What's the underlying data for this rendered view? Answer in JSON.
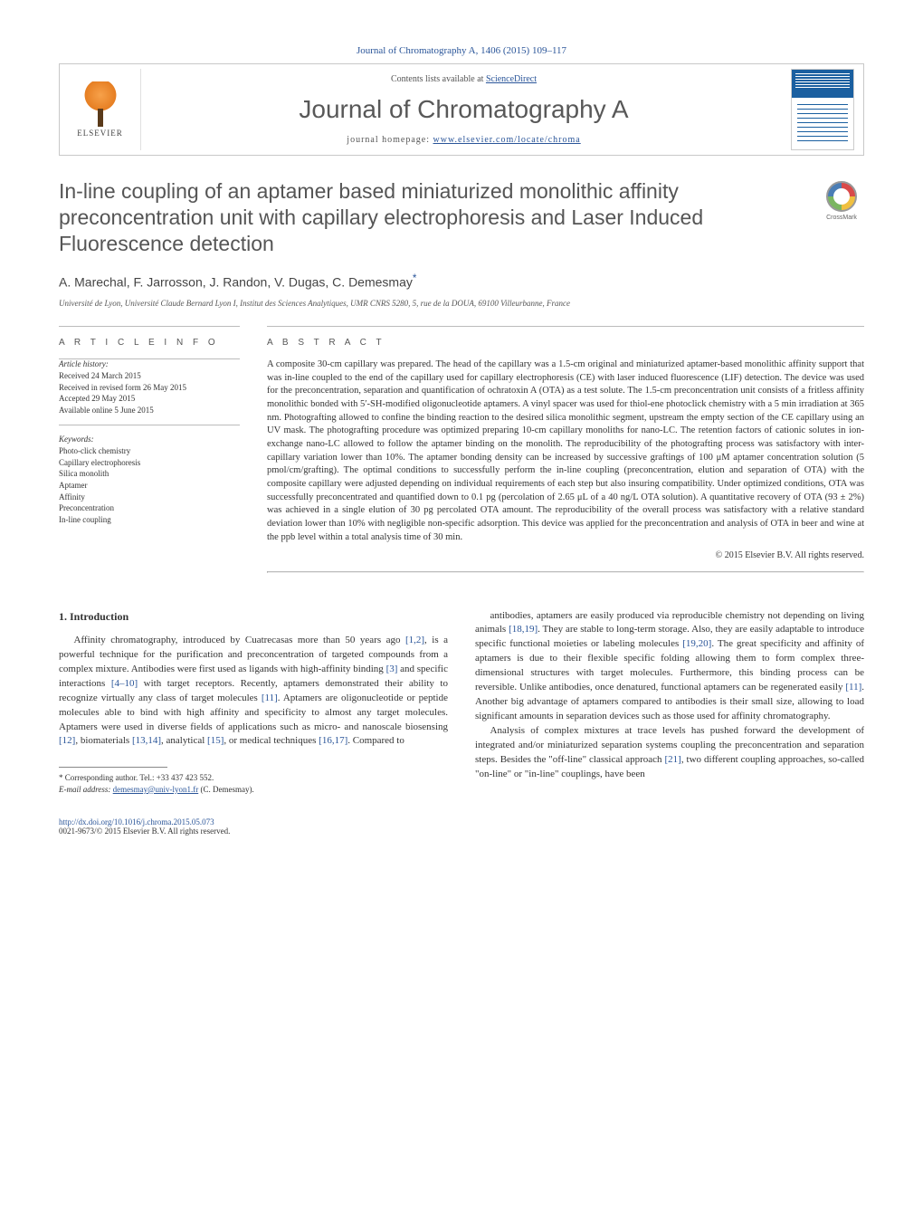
{
  "journal_ref": "Journal of Chromatography A, 1406 (2015) 109–117",
  "header": {
    "publisher": "ELSEVIER",
    "contents_prefix": "Contents lists available at ",
    "contents_link": "ScienceDirect",
    "journal_title": "Journal of Chromatography A",
    "homepage_prefix": "journal homepage: ",
    "homepage_link": "www.elsevier.com/locate/chroma"
  },
  "crossmark_label": "CrossMark",
  "article": {
    "title": "In-line coupling of an aptamer based miniaturized monolithic affinity preconcentration unit with capillary electrophoresis and Laser Induced Fluorescence detection",
    "authors": "A. Marechal, F. Jarrosson, J. Randon, V. Dugas, C. Demesmay",
    "corr_marker": "*",
    "affiliation": "Université de Lyon, Université Claude Bernard Lyon I, Institut des Sciences Analytiques, UMR CNRS 5280, 5, rue de la DOUA, 69100 Villeurbanne, France"
  },
  "info": {
    "label": "A R T I C L E    I N F O",
    "history_heading": "Article history:",
    "history": "Received 24 March 2015\nReceived in revised form 26 May 2015\nAccepted 29 May 2015\nAvailable online 5 June 2015",
    "keywords_heading": "Keywords:",
    "keywords": "Photo-click chemistry\nCapillary electrophoresis\nSilica monolith\nAptamer\nAffinity\nPreconcentration\nIn-line coupling"
  },
  "abstract": {
    "label": "A B S T R A C T",
    "text": "A composite 30-cm capillary was prepared. The head of the capillary was a 1.5-cm original and miniaturized aptamer-based monolithic affinity support that was in-line coupled to the end of the capillary used for capillary electrophoresis (CE) with laser induced fluorescence (LIF) detection. The device was used for the preconcentration, separation and quantification of ochratoxin A (OTA) as a test solute. The 1.5-cm preconcentration unit consists of a fritless affinity monolithic bonded with 5′-SH-modified oligonucleotide aptamers. A vinyl spacer was used for thiol-ene photoclick chemistry with a 5 min irradiation at 365 nm. Photografting allowed to confine the binding reaction to the desired silica monolithic segment, upstream the empty section of the CE capillary using an UV mask. The photografting procedure was optimized preparing 10-cm capillary monoliths for nano-LC. The retention factors of cationic solutes in ion-exchange nano-LC allowed to follow the aptamer binding on the monolith. The reproducibility of the photografting process was satisfactory with inter-capillary variation lower than 10%. The aptamer bonding density can be increased by successive graftings of 100 μM aptamer concentration solution (5 pmol/cm/grafting). The optimal conditions to successfully perform the in-line coupling (preconcentration, elution and separation of OTA) with the composite capillary were adjusted depending on individual requirements of each step but also insuring compatibility. Under optimized conditions, OTA was successfully preconcentrated and quantified down to 0.1 pg (percolation of 2.65 μL of a 40 ng/L OTA solution). A quantitative recovery of OTA (93 ± 2%) was achieved in a single elution of 30 pg percolated OTA amount. The reproducibility of the overall process was satisfactory with a relative standard deviation lower than 10% with negligible non-specific adsorption. This device was applied for the preconcentration and analysis of OTA in beer and wine at the ppb level within a total analysis time of 30 min.",
    "copyright": "© 2015 Elsevier B.V. All rights reserved."
  },
  "body": {
    "intro_heading": "1. Introduction",
    "left_para": "Affinity chromatography, introduced by Cuatrecasas more than 50 years ago [1,2], is a powerful technique for the purification and preconcentration of targeted compounds from a complex mixture. Antibodies were first used as ligands with high-affinity binding [3] and specific interactions [4–10] with target receptors. Recently, aptamers demonstrated their ability to recognize virtually any class of target molecules [11]. Aptamers are oligonucleotide or peptide molecules able to bind with high affinity and specificity to almost any target molecules. Aptamers were used in diverse fields of applications such as micro- and nanoscale biosensing [12], biomaterials [13,14], analytical [15], or medical techniques [16,17]. Compared to",
    "right_para1": "antibodies, aptamers are easily produced via reproducible chemistry not depending on living animals [18,19]. They are stable to long-term storage. Also, they are easily adaptable to introduce specific functional moieties or labeling molecules [19,20]. The great specificity and affinity of aptamers is due to their flexible specific folding allowing them to form complex three-dimensional structures with target molecules. Furthermore, this binding process can be reversible. Unlike antibodies, once denatured, functional aptamers can be regenerated easily [11]. Another big advantage of aptamers compared to antibodies is their small size, allowing to load significant amounts in separation devices such as those used for affinity chromatography.",
    "right_para2": "Analysis of complex mixtures at trace levels has pushed forward the development of integrated and/or miniaturized separation systems coupling the preconcentration and separation steps. Besides the \"off-line\" classical approach [21], two different coupling approaches, so-called \"on-line\" or \"in-line\" couplings, have been"
  },
  "footnote": {
    "corr": "* Corresponding author. Tel.: +33 437 423 552.",
    "email_label": "E-mail address: ",
    "email": "demesmay@univ-lyon1.fr",
    "email_suffix": " (C. Demesmay)."
  },
  "footer": {
    "doi": "http://dx.doi.org/10.1016/j.chroma.2015.05.073",
    "issn": "0021-9673/© 2015 Elsevier B.V. All rights reserved."
  },
  "colors": {
    "link": "#2a5599",
    "text": "#333333",
    "heading_gray": "#555555",
    "rule": "#bbbbbb"
  }
}
